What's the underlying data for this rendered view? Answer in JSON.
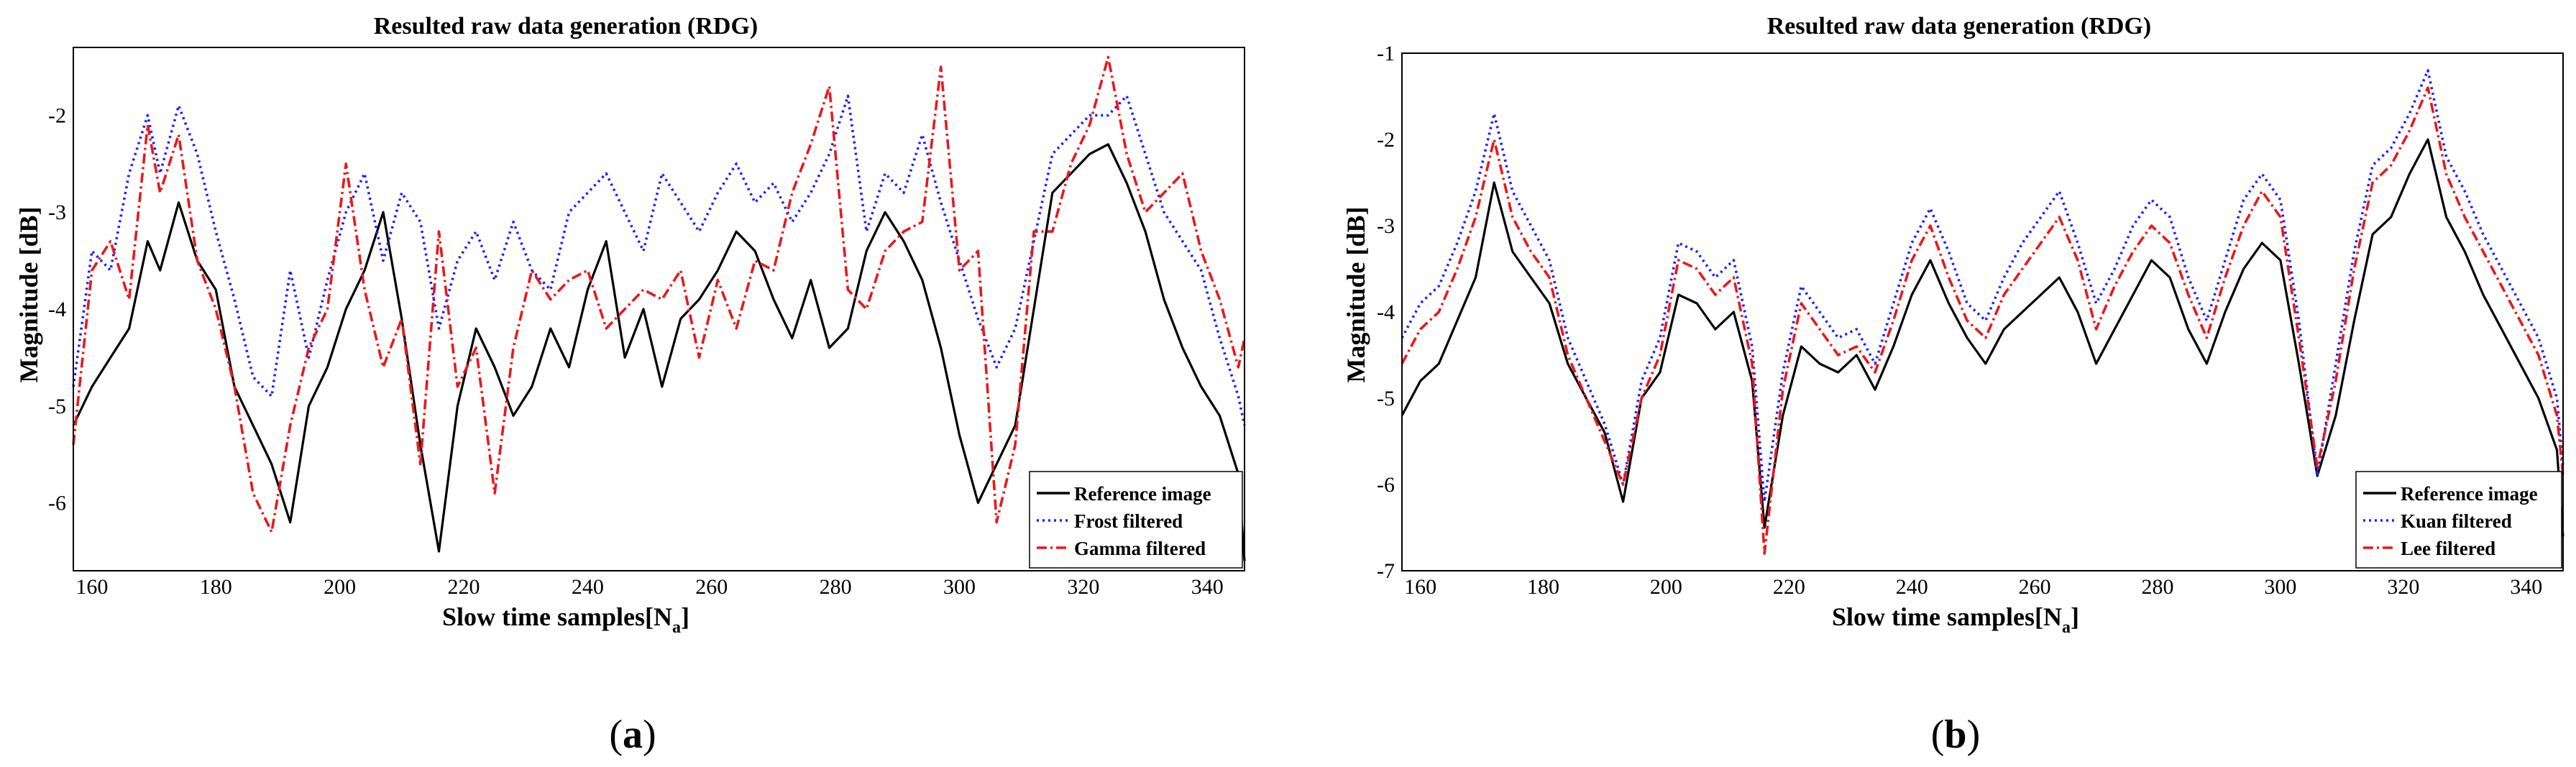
{
  "chart_data": [
    {
      "type": "line",
      "panel_label": "a",
      "title": "Resulted raw data generation (RDG)",
      "xlabel": "Slow time samples[N",
      "xlabel_sub": "a",
      "xlabel_close": "]",
      "ylabel": "Magnitude [dB]",
      "xlim": [
        157,
        346
      ],
      "ylim": [
        -6.7,
        -1.3
      ],
      "xticks": [
        160,
        180,
        200,
        220,
        240,
        260,
        280,
        300,
        320,
        340
      ],
      "yticks": [
        -2,
        -3,
        -4,
        -5,
        -6
      ],
      "legend": "bottom-right",
      "series": [
        {
          "name": "Reference image",
          "color": "#000000",
          "style": "solid",
          "x": [
            157,
            160,
            163,
            166,
            169,
            171,
            174,
            177,
            180,
            183,
            186,
            189,
            192,
            195,
            198,
            201,
            204,
            207,
            210,
            213,
            216,
            219,
            222,
            225,
            228,
            231,
            234,
            237,
            240,
            243,
            246,
            249,
            252,
            255,
            258,
            261,
            264,
            267,
            270,
            273,
            276,
            279,
            282,
            285,
            288,
            291,
            294,
            297,
            300,
            303,
            306,
            309,
            312,
            315,
            318,
            321,
            324,
            327,
            330,
            333,
            336,
            339,
            342,
            345,
            346
          ],
          "values": [
            -5.2,
            -4.8,
            -4.5,
            -4.2,
            -3.3,
            -3.6,
            -2.9,
            -3.5,
            -3.8,
            -4.8,
            -5.2,
            -5.6,
            -6.2,
            -5.0,
            -4.6,
            -4.0,
            -3.6,
            -3.0,
            -4.1,
            -5.4,
            -6.5,
            -5.0,
            -4.2,
            -4.6,
            -5.1,
            -4.8,
            -4.2,
            -4.6,
            -3.8,
            -3.3,
            -4.5,
            -4.0,
            -4.8,
            -4.1,
            -3.9,
            -3.6,
            -3.2,
            -3.4,
            -3.9,
            -4.3,
            -3.7,
            -4.4,
            -4.2,
            -3.4,
            -3.0,
            -3.3,
            -3.7,
            -4.4,
            -5.3,
            -6.0,
            -5.6,
            -5.2,
            -4.0,
            -2.8,
            -2.6,
            -2.4,
            -2.3,
            -2.7,
            -3.2,
            -3.9,
            -4.4,
            -4.8,
            -5.1,
            -5.7,
            -6.6
          ]
        },
        {
          "name": "Frost filtered",
          "color": "#1f1fff",
          "style": "dotted",
          "x": [
            157,
            160,
            163,
            166,
            169,
            171,
            174,
            177,
            180,
            183,
            186,
            189,
            192,
            195,
            198,
            201,
            204,
            207,
            210,
            213,
            216,
            219,
            222,
            225,
            228,
            231,
            234,
            237,
            240,
            243,
            246,
            249,
            252,
            255,
            258,
            261,
            264,
            267,
            270,
            273,
            276,
            279,
            282,
            285,
            288,
            291,
            294,
            297,
            300,
            303,
            306,
            309,
            312,
            315,
            318,
            321,
            324,
            327,
            330,
            333,
            336,
            339,
            342,
            345,
            346
          ],
          "values": [
            -4.8,
            -3.4,
            -3.6,
            -2.6,
            -2.0,
            -2.6,
            -1.9,
            -2.4,
            -3.2,
            -3.9,
            -4.7,
            -4.9,
            -3.6,
            -4.5,
            -3.7,
            -3.0,
            -2.6,
            -3.5,
            -2.8,
            -3.1,
            -4.2,
            -3.5,
            -3.2,
            -3.7,
            -3.1,
            -3.6,
            -3.8,
            -3.0,
            -2.8,
            -2.6,
            -3.0,
            -3.4,
            -2.6,
            -2.9,
            -3.2,
            -2.8,
            -2.5,
            -2.9,
            -2.7,
            -3.1,
            -2.8,
            -2.4,
            -1.8,
            -3.2,
            -2.6,
            -2.8,
            -2.2,
            -2.9,
            -3.5,
            -4.1,
            -4.6,
            -4.2,
            -3.3,
            -2.4,
            -2.2,
            -2.0,
            -2.0,
            -1.8,
            -2.4,
            -3.0,
            -3.3,
            -3.6,
            -4.3,
            -4.9,
            -5.2
          ]
        },
        {
          "name": "Gamma filtered",
          "color": "#e8191c",
          "style": "dashdot",
          "x": [
            157,
            160,
            163,
            166,
            169,
            171,
            174,
            177,
            180,
            183,
            186,
            189,
            192,
            195,
            198,
            201,
            204,
            207,
            210,
            213,
            216,
            219,
            222,
            225,
            228,
            231,
            234,
            237,
            240,
            243,
            246,
            249,
            252,
            255,
            258,
            261,
            264,
            267,
            270,
            273,
            276,
            279,
            282,
            285,
            288,
            291,
            294,
            297,
            300,
            303,
            306,
            309,
            312,
            315,
            318,
            321,
            324,
            327,
            330,
            333,
            336,
            339,
            342,
            345,
            346
          ],
          "values": [
            -5.4,
            -3.6,
            -3.3,
            -3.9,
            -2.1,
            -2.8,
            -2.2,
            -3.5,
            -4.0,
            -4.8,
            -5.9,
            -6.3,
            -5.2,
            -4.4,
            -4.0,
            -2.5,
            -3.8,
            -4.6,
            -4.1,
            -5.6,
            -3.2,
            -4.8,
            -4.4,
            -5.9,
            -4.4,
            -3.6,
            -3.9,
            -3.7,
            -3.6,
            -4.2,
            -4.0,
            -3.8,
            -3.9,
            -3.6,
            -4.5,
            -3.7,
            -4.2,
            -3.5,
            -3.6,
            -2.8,
            -2.3,
            -1.7,
            -3.8,
            -4.0,
            -3.4,
            -3.2,
            -3.1,
            -1.5,
            -3.6,
            -3.4,
            -6.2,
            -5.4,
            -3.2,
            -3.2,
            -2.5,
            -2.1,
            -1.4,
            -2.4,
            -3.0,
            -2.8,
            -2.6,
            -3.4,
            -3.9,
            -4.6,
            -4.3
          ]
        }
      ]
    },
    {
      "type": "line",
      "panel_label": "b",
      "title": "Resulted raw data generation (RDG)",
      "xlabel": "Slow time samples[N",
      "xlabel_sub": "a",
      "xlabel_close": "]",
      "ylabel": "Magnitude [dB]",
      "xlim": [
        157,
        346
      ],
      "ylim": [
        -7,
        -1
      ],
      "xticks": [
        160,
        180,
        200,
        220,
        240,
        260,
        280,
        300,
        320,
        340
      ],
      "yticks": [
        -1,
        -2,
        -3,
        -4,
        -5,
        -6,
        -7
      ],
      "legend": "bottom-right",
      "series": [
        {
          "name": "Reference image",
          "color": "#000000",
          "style": "solid",
          "x": [
            157,
            160,
            163,
            166,
            169,
            172,
            175,
            178,
            181,
            184,
            187,
            190,
            193,
            196,
            199,
            202,
            205,
            208,
            211,
            214,
            216,
            219,
            222,
            225,
            228,
            231,
            234,
            237,
            240,
            243,
            246,
            249,
            252,
            255,
            258,
            261,
            264,
            267,
            270,
            273,
            276,
            279,
            282,
            285,
            288,
            291,
            294,
            297,
            300,
            303,
            306,
            309,
            312,
            315,
            318,
            321,
            324,
            327,
            330,
            333,
            336,
            339,
            342,
            345,
            346
          ],
          "values": [
            -5.2,
            -4.8,
            -4.6,
            -4.1,
            -3.6,
            -2.5,
            -3.3,
            -3.6,
            -3.9,
            -4.6,
            -5.0,
            -5.4,
            -6.2,
            -5.0,
            -4.7,
            -3.8,
            -3.9,
            -4.2,
            -4.0,
            -4.8,
            -6.5,
            -5.2,
            -4.4,
            -4.6,
            -4.7,
            -4.5,
            -4.9,
            -4.4,
            -3.8,
            -3.4,
            -3.9,
            -4.3,
            -4.6,
            -4.2,
            -4.0,
            -3.8,
            -3.6,
            -4.0,
            -4.6,
            -4.2,
            -3.8,
            -3.4,
            -3.6,
            -4.2,
            -4.6,
            -4.0,
            -3.5,
            -3.2,
            -3.4,
            -4.6,
            -5.9,
            -5.2,
            -4.1,
            -3.1,
            -2.9,
            -2.4,
            -2.0,
            -2.9,
            -3.3,
            -3.8,
            -4.2,
            -4.6,
            -5.0,
            -5.6,
            -6.6
          ]
        },
        {
          "name": "Kuan filtered",
          "color": "#1f1fff",
          "style": "dotted",
          "x": [
            157,
            160,
            163,
            166,
            169,
            172,
            175,
            178,
            181,
            184,
            187,
            190,
            193,
            196,
            199,
            202,
            205,
            208,
            211,
            214,
            216,
            219,
            222,
            225,
            228,
            231,
            234,
            237,
            240,
            243,
            246,
            249,
            252,
            255,
            258,
            261,
            264,
            267,
            270,
            273,
            276,
            279,
            282,
            285,
            288,
            291,
            294,
            297,
            300,
            303,
            306,
            309,
            312,
            315,
            318,
            321,
            324,
            327,
            330,
            333,
            336,
            339,
            342,
            345,
            346
          ],
          "values": [
            -4.3,
            -3.9,
            -3.7,
            -3.2,
            -2.6,
            -1.7,
            -2.6,
            -3.0,
            -3.4,
            -4.3,
            -4.8,
            -5.3,
            -6.0,
            -4.8,
            -4.3,
            -3.2,
            -3.3,
            -3.6,
            -3.4,
            -4.4,
            -6.2,
            -4.7,
            -3.7,
            -4.0,
            -4.3,
            -4.2,
            -4.6,
            -3.9,
            -3.2,
            -2.8,
            -3.3,
            -3.9,
            -4.1,
            -3.6,
            -3.2,
            -2.9,
            -2.6,
            -3.2,
            -3.9,
            -3.5,
            -3.0,
            -2.7,
            -2.9,
            -3.6,
            -4.1,
            -3.4,
            -2.7,
            -2.4,
            -2.7,
            -4.1,
            -5.9,
            -4.6,
            -3.3,
            -2.3,
            -2.1,
            -1.7,
            -1.2,
            -2.2,
            -2.6,
            -3.1,
            -3.5,
            -3.9,
            -4.3,
            -5.0,
            -5.8
          ]
        },
        {
          "name": "Lee filtered",
          "color": "#e8191c",
          "style": "dashdot",
          "x": [
            157,
            160,
            163,
            166,
            169,
            172,
            175,
            178,
            181,
            184,
            187,
            190,
            193,
            196,
            199,
            202,
            205,
            208,
            211,
            214,
            216,
            219,
            222,
            225,
            228,
            231,
            234,
            237,
            240,
            243,
            246,
            249,
            252,
            255,
            258,
            261,
            264,
            267,
            270,
            273,
            276,
            279,
            282,
            285,
            288,
            291,
            294,
            297,
            300,
            303,
            306,
            309,
            312,
            315,
            318,
            321,
            324,
            327,
            330,
            333,
            336,
            339,
            342,
            345,
            346
          ],
          "values": [
            -4.6,
            -4.2,
            -4.0,
            -3.5,
            -2.9,
            -2.0,
            -2.9,
            -3.3,
            -3.6,
            -4.5,
            -5.0,
            -5.5,
            -6.0,
            -5.0,
            -4.5,
            -3.4,
            -3.5,
            -3.8,
            -3.6,
            -4.6,
            -6.8,
            -4.9,
            -3.9,
            -4.2,
            -4.5,
            -4.4,
            -4.7,
            -4.1,
            -3.4,
            -3.0,
            -3.6,
            -4.1,
            -4.3,
            -3.8,
            -3.5,
            -3.2,
            -2.9,
            -3.4,
            -4.2,
            -3.7,
            -3.3,
            -3.0,
            -3.2,
            -3.8,
            -4.3,
            -3.6,
            -3.0,
            -2.6,
            -2.9,
            -4.3,
            -5.8,
            -4.8,
            -3.5,
            -2.5,
            -2.3,
            -1.9,
            -1.4,
            -2.4,
            -2.9,
            -3.3,
            -3.7,
            -4.1,
            -4.5,
            -5.2,
            -5.9
          ]
        }
      ]
    }
  ]
}
